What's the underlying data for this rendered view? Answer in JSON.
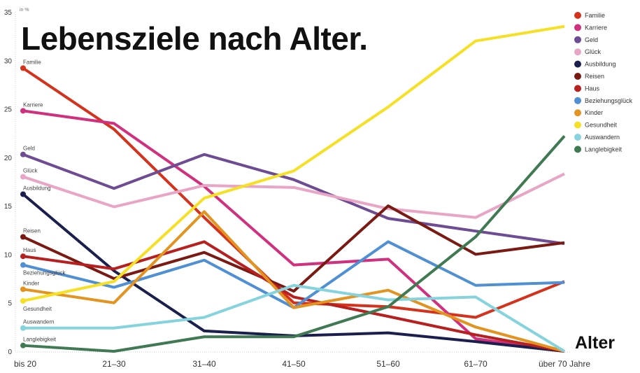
{
  "chart_data": {
    "type": "line",
    "title": "Lebensziele nach Alter.",
    "unit_label": "in %",
    "xlabel": "Alter",
    "ylabel": "",
    "ylim": [
      0,
      35
    ],
    "yticks": [
      0,
      5,
      10,
      15,
      20,
      25,
      30,
      35
    ],
    "grid": false,
    "legend": "right",
    "categories": [
      "bis 20",
      "21–30",
      "31–40",
      "41–50",
      "51–60",
      "61–70",
      "über 70 Jahre"
    ],
    "series": [
      {
        "name": "Familie",
        "color": "#d4321c",
        "values": [
          29.2,
          22.9,
          13.8,
          5.0,
          4.6,
          3.5,
          7.2
        ]
      },
      {
        "name": "Karriere",
        "color": "#d0307e",
        "values": [
          24.8,
          23.5,
          17.0,
          8.9,
          9.5,
          1.3,
          0
        ]
      },
      {
        "name": "Geld",
        "color": "#6e4c93",
        "values": [
          20.3,
          16.8,
          20.3,
          17.7,
          13.7,
          12.4,
          11.1
        ]
      },
      {
        "name": "Glück",
        "color": "#e8a5c6",
        "values": [
          18.0,
          14.9,
          17.1,
          16.9,
          14.7,
          13.8,
          18.3
        ]
      },
      {
        "name": "Ausbildung",
        "color": "#1b1f4d",
        "values": [
          16.2,
          8.3,
          2.1,
          1.6,
          1.9,
          1.0,
          0
        ]
      },
      {
        "name": "Reisen",
        "color": "#7a1a12",
        "values": [
          11.8,
          7.5,
          10.2,
          6.2,
          15.0,
          10.0,
          11.2
        ]
      },
      {
        "name": "Haus",
        "color": "#b81f1f",
        "values": [
          9.8,
          8.5,
          11.3,
          5.6,
          3.6,
          1.7,
          0
        ]
      },
      {
        "name": "Beziehungsglück",
        "color": "#4f8fd4",
        "values": [
          8.9,
          6.6,
          9.4,
          4.5,
          11.3,
          6.8,
          7.1
        ]
      },
      {
        "name": "Kinder",
        "color": "#e3931f",
        "values": [
          6.4,
          5.0,
          14.4,
          4.5,
          6.3,
          2.5,
          0
        ]
      },
      {
        "name": "Gesundheit",
        "color": "#f5e024",
        "values": [
          5.2,
          7.2,
          15.8,
          18.6,
          25.2,
          32.0,
          33.5
        ]
      },
      {
        "name": "Auswandern",
        "color": "#85d3dd",
        "values": [
          2.4,
          2.4,
          3.5,
          6.8,
          5.3,
          5.6,
          0
        ]
      },
      {
        "name": "Langlebigkeit",
        "color": "#3f7a52",
        "values": [
          0.6,
          0,
          1.5,
          1.5,
          4.6,
          11.8,
          22.2
        ]
      }
    ]
  }
}
